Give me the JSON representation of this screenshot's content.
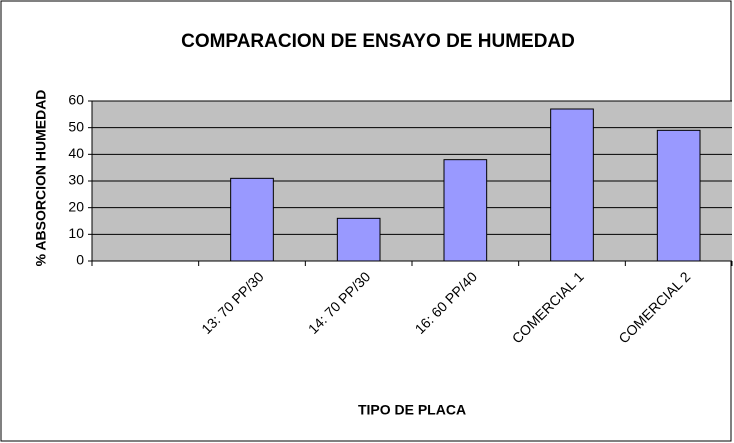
{
  "chart_data": {
    "type": "bar",
    "title": "COMPARACION DE ENSAYO DE HUMEDAD",
    "x_label": "TIPO DE PLACA",
    "y_label": "% ABSORCION HUMEDAD",
    "categories": [
      null,
      "13: 70 PP/30",
      "14: 70 PP/30",
      "16: 60 PP/40",
      "COMERCIAL 1",
      "COMERCIAL 2"
    ],
    "values": [
      null,
      31,
      16,
      38,
      57,
      49
    ],
    "color": "#9999ff",
    "ylim": [
      0,
      60
    ],
    "yticks": [
      0,
      10,
      20,
      30,
      40,
      50,
      60
    ],
    "grid": true
  }
}
